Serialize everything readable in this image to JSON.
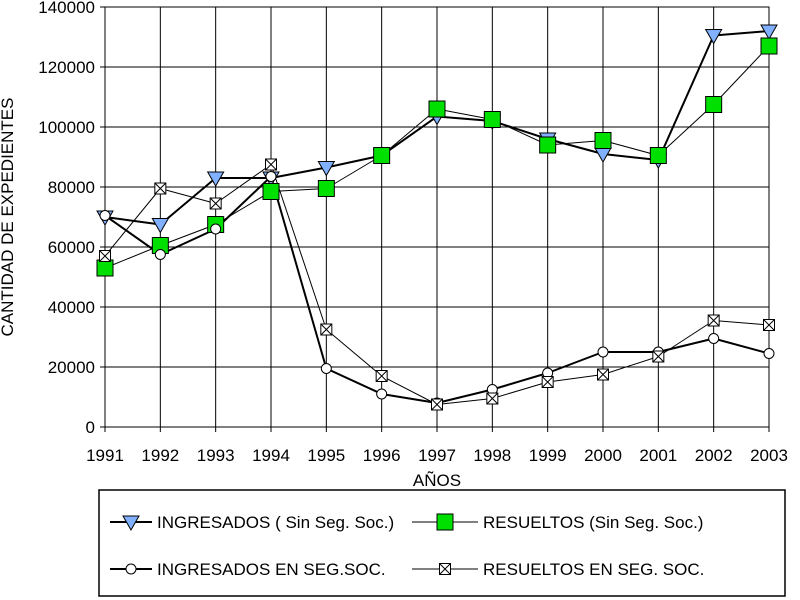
{
  "chart_data": {
    "type": "line",
    "title": "",
    "xlabel": "AÑOS",
    "ylabel": "CANTIDAD DE EXPEDIENTES",
    "ylim": [
      0,
      140000
    ],
    "yticks": [
      0,
      20000,
      40000,
      60000,
      80000,
      100000,
      120000,
      140000
    ],
    "ytick_labels": [
      "0",
      "20000",
      "40000",
      "60000",
      "80000",
      "100000",
      "120000",
      "140000"
    ],
    "categories": [
      "1991",
      "1992",
      "1993",
      "1994",
      "1995",
      "1996",
      "1997",
      "1998",
      "1999",
      "2000",
      "2001",
      "2002",
      "2003"
    ],
    "grid": true,
    "legend_position": "bottom",
    "series": [
      {
        "name": "INGRESADOS ( Sin Seg. Soc.)",
        "marker": "triangle-down",
        "color": "#000000",
        "marker_fill": "#80b0ff",
        "values": [
          70000,
          67500,
          83000,
          83000,
          86500,
          90500,
          103500,
          102000,
          96000,
          91000,
          89000,
          130500,
          132000
        ]
      },
      {
        "name": "RESUELTOS (Sin Seg. Soc.)",
        "marker": "square",
        "color": "#000000",
        "marker_fill": "#00e000",
        "values": [
          53000,
          60500,
          67500,
          78500,
          79500,
          90500,
          106000,
          102500,
          94000,
          95500,
          90500,
          107500,
          127000
        ]
      },
      {
        "name": "INGRESADOS EN SEG.SOC.",
        "marker": "circle",
        "color": "#000000",
        "marker_fill": "#ffffff",
        "values": [
          70500,
          57500,
          66000,
          83500,
          19500,
          11000,
          8000,
          12500,
          18000,
          25000,
          25000,
          29500,
          24500
        ]
      },
      {
        "name": "RESUELTOS EN SEG. SOC.",
        "marker": "square-x",
        "color": "#000000",
        "marker_fill": "#ffffff",
        "values": [
          57000,
          79500,
          74500,
          87500,
          32500,
          17000,
          7500,
          9500,
          15000,
          17500,
          23500,
          35500,
          34000
        ]
      }
    ]
  }
}
